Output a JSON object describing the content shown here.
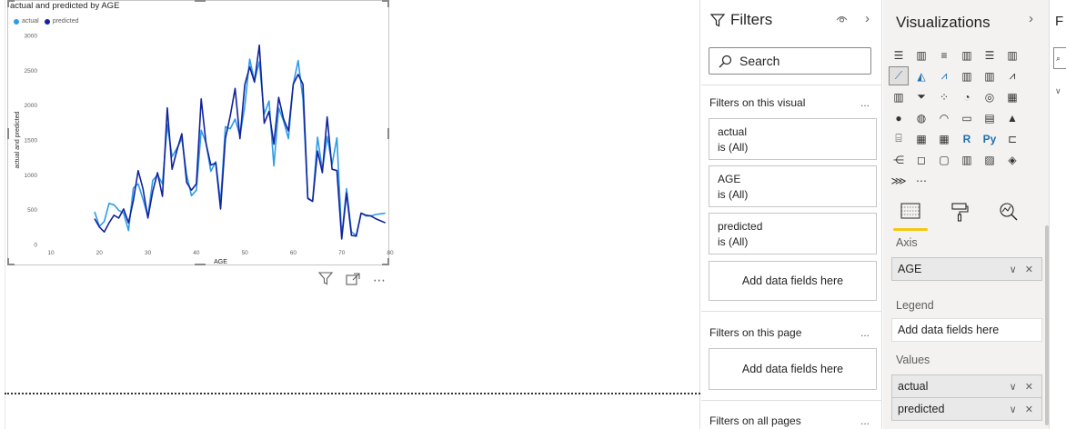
{
  "visual": {
    "title": "actual and predicted by AGE",
    "legend": [
      {
        "label": "actual",
        "color": "#2f9be9"
      },
      {
        "label": "predicted",
        "color": "#12239e"
      }
    ],
    "header_icons": [
      "filter-icon",
      "focus-mode-icon",
      "more-options-icon"
    ],
    "more_label": "⋯"
  },
  "chart_data": {
    "type": "line",
    "title": "actual and predicted by AGE",
    "xlabel": "AGE",
    "ylabel": "actual and predicted",
    "xlim": [
      10,
      80
    ],
    "ylim": [
      0,
      3000
    ],
    "xticks": [
      "10",
      "20",
      "30",
      "40",
      "50",
      "60",
      "70",
      "80"
    ],
    "yticks": [
      "0",
      "500",
      "1000",
      "1500",
      "2000",
      "2500",
      "3000"
    ],
    "grid": false,
    "legend_position": "top-left",
    "x": [
      19,
      20,
      21,
      22,
      23,
      24,
      25,
      26,
      27,
      28,
      29,
      30,
      31,
      32,
      33,
      34,
      35,
      36,
      37,
      38,
      39,
      40,
      41,
      42,
      43,
      44,
      45,
      46,
      47,
      48,
      49,
      50,
      51,
      52,
      53,
      54,
      55,
      56,
      57,
      58,
      59,
      60,
      61,
      62,
      63,
      64,
      65,
      66,
      67,
      68,
      69,
      70,
      71,
      72,
      73,
      74,
      75,
      76,
      77,
      78,
      79
    ],
    "series": [
      {
        "name": "actual",
        "color": "#2f9be9",
        "values": [
          470,
          260,
          330,
          590,
          570,
          490,
          450,
          200,
          810,
          870,
          650,
          400,
          920,
          1000,
          870,
          1720,
          1260,
          1380,
          1520,
          1000,
          700,
          780,
          1640,
          1460,
          1050,
          1190,
          600,
          1690,
          1660,
          1800,
          1560,
          1980,
          2660,
          2350,
          2620,
          1870,
          2060,
          1130,
          1960,
          1770,
          1520,
          2300,
          2640,
          2080,
          670,
          620,
          1540,
          1070,
          1550,
          1150,
          1530,
          110,
          800,
          180,
          130,
          450,
          410,
          410,
          430,
          440,
          450
        ]
      },
      {
        "name": "predicted",
        "color": "#12239e",
        "values": [
          370,
          250,
          180,
          310,
          420,
          380,
          510,
          310,
          630,
          1060,
          800,
          380,
          760,
          1030,
          690,
          1960,
          1080,
          1350,
          1590,
          890,
          780,
          870,
          2090,
          1450,
          1140,
          1170,
          510,
          1520,
          1850,
          2240,
          1520,
          2290,
          2550,
          2330,
          2860,
          1740,
          1910,
          1440,
          2110,
          1800,
          1630,
          2300,
          2440,
          2300,
          660,
          620,
          1340,
          1030,
          1830,
          1080,
          1060,
          80,
          740,
          130,
          120,
          450,
          420,
          410,
          370,
          340,
          310
        ]
      }
    ]
  },
  "filters": {
    "title": "Filters",
    "search_placeholder": "Search",
    "on_visual_label": "Filters on this visual",
    "on_page_label": "Filters on this page",
    "on_all_label": "Filters on all pages",
    "more": "...",
    "cards": [
      {
        "field": "actual",
        "state": "is (All)"
      },
      {
        "field": "AGE",
        "state": "is (All)"
      },
      {
        "field": "predicted",
        "state": "is (All)"
      }
    ],
    "add_fields": "Add data fields here"
  },
  "visualizations": {
    "title": "Visualizations",
    "icons": [
      "stacked-bar-icon",
      "stacked-column-icon",
      "clustered-bar-icon",
      "clustered-column-icon",
      "100-bar-icon",
      "100-column-icon",
      "line-chart-icon",
      "area-chart-icon",
      "stacked-area-icon",
      "line-column-icon",
      "line-clustered-column-icon",
      "ribbon-icon",
      "waterfall-icon",
      "funnel-icon",
      "scatter-icon",
      "pie-icon",
      "donut-icon",
      "treemap-icon",
      "map-icon",
      "filled-map-icon",
      "gauge-icon",
      "card-icon",
      "multirow-card-icon",
      "kpi-icon",
      "slicer-icon",
      "table-icon",
      "matrix-icon",
      "r-visual-icon",
      "python-visual-icon",
      "key-influencers-icon",
      "decomposition-tree-icon",
      "qa-icon",
      "smart-narrative-icon",
      "paginated-report-icon",
      "power-apps-icon",
      "power-automate-icon",
      "arcgis-icon",
      "more-visuals-icon"
    ],
    "glyphs": [
      "☰",
      "▥",
      "≡",
      "▥",
      "☰",
      "▥",
      "⟋",
      "◭",
      "⩘",
      "▥",
      "▥",
      "⩘",
      "▥",
      "⏷",
      "⁘",
      "◔",
      "◎",
      "▦",
      "●",
      "◍",
      "◠",
      "▭",
      "▤",
      "▲",
      "⌸",
      "▦",
      "▦",
      "R",
      "Py",
      "⊏",
      "⋲",
      "◻",
      "▢",
      "▥",
      "▨",
      "◈",
      "⋙",
      "⋯"
    ],
    "selected_index": 6,
    "tabs": [
      "build-visual-icon",
      "format-icon",
      "analytics-icon"
    ],
    "tab_glyphs": [
      "▤",
      "⌂",
      "⊙"
    ],
    "wells": {
      "axis_label": "Axis",
      "axis_field": "AGE",
      "legend_label": "Legend",
      "legend_placeholder": "Add data fields here",
      "values_label": "Values",
      "values_fields": [
        "actual",
        "predicted"
      ],
      "field_controls": "∨ ✕"
    }
  },
  "fields_pane": {
    "letter": "F"
  }
}
